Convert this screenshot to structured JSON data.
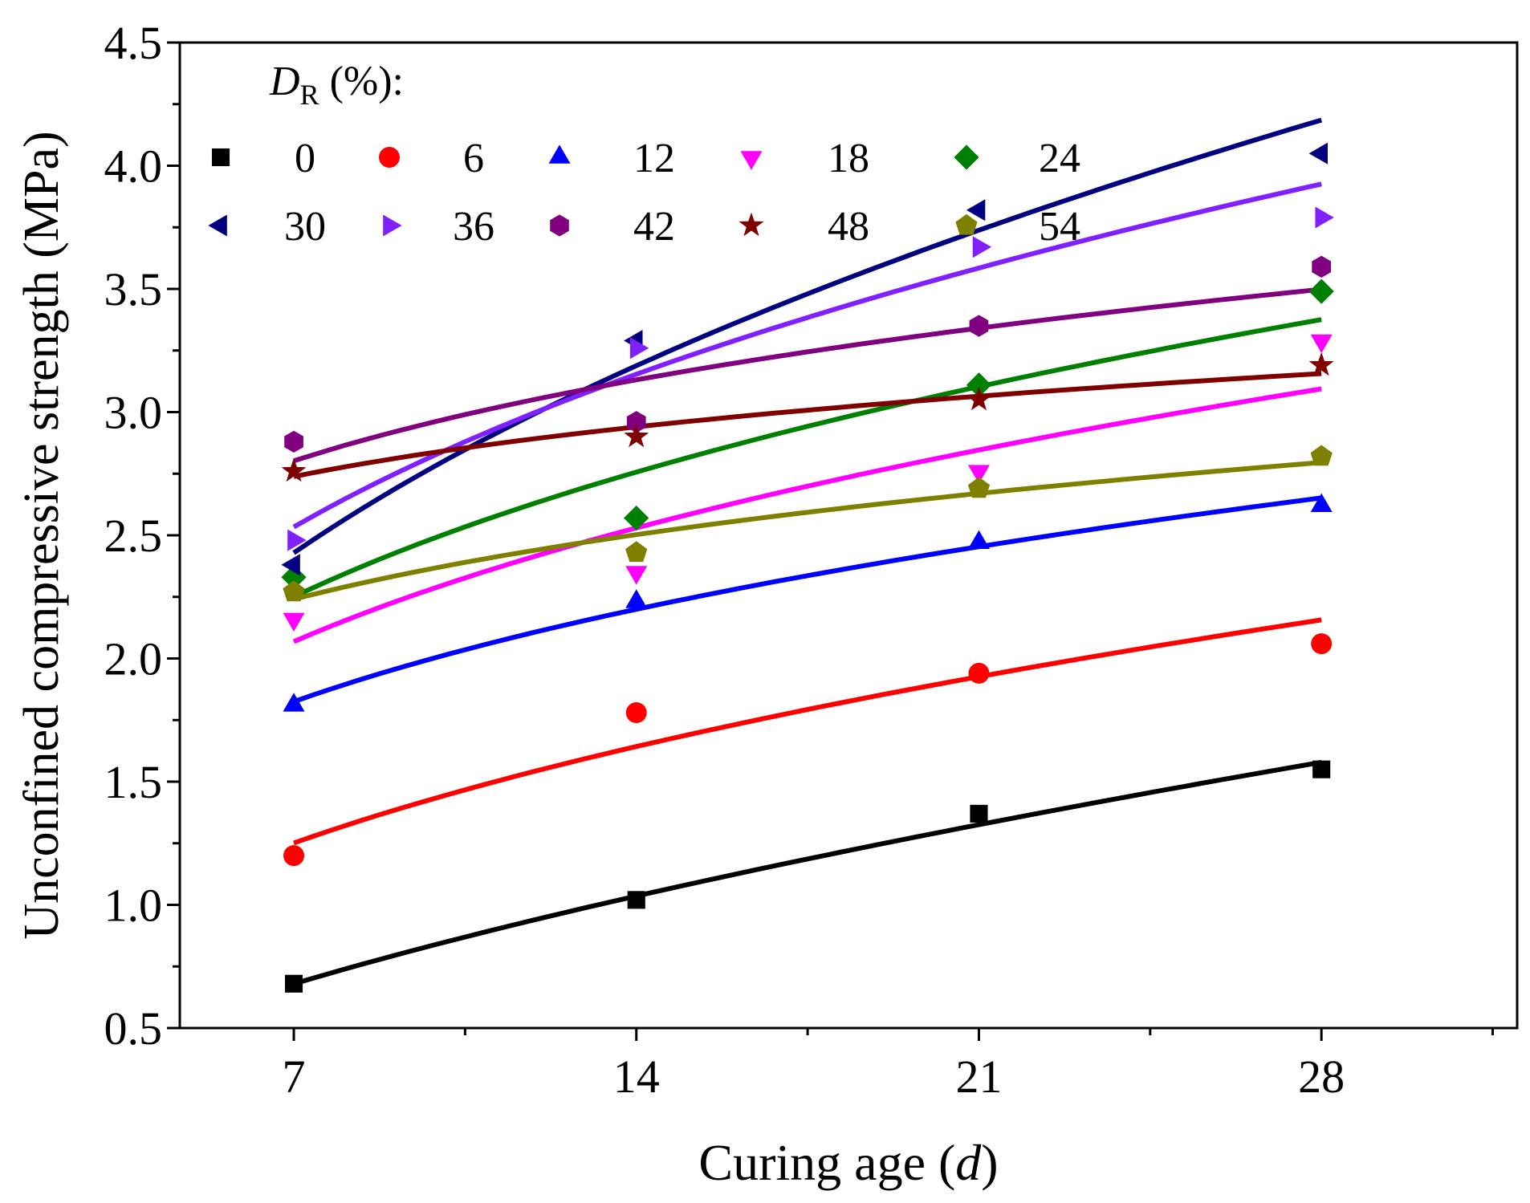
{
  "chart_data": {
    "type": "scatter",
    "title": "",
    "xlabel": "Curing age (d)",
    "xlabel_main": "Curing age (",
    "xlabel_italic": "d",
    "xlabel_end": ")",
    "ylabel": "Unconfined compressive strength (MPa)",
    "xlim": [
      4.67,
      32.0
    ],
    "ylim": [
      0.5,
      4.5
    ],
    "xticks": [
      7,
      14,
      21,
      28
    ],
    "xtick_labels": [
      "7",
      "14",
      "21",
      "28"
    ],
    "yticks": [
      0.5,
      1.0,
      1.5,
      2.0,
      2.5,
      3.0,
      3.5,
      4.0,
      4.5
    ],
    "ytick_labels": [
      "0.5",
      "1.0",
      "1.5",
      "2.0",
      "2.5",
      "3.0",
      "3.5",
      "4.0",
      "4.5"
    ],
    "grid": false,
    "legend_title_main": "D",
    "legend_title_sub": "R",
    "legend_title_rest": " (%):",
    "legend_placement": "top-left",
    "fit": "power curve fit per series",
    "x": [
      7,
      14,
      21,
      28
    ],
    "series": [
      {
        "name": "0",
        "marker": "square",
        "color": "#000000",
        "values": [
          0.68,
          1.02,
          1.37,
          1.55
        ]
      },
      {
        "name": "6",
        "marker": "circle",
        "color": "#ff0000",
        "values": [
          1.2,
          1.78,
          1.94,
          2.06
        ]
      },
      {
        "name": "12",
        "marker": "triangle-up",
        "color": "#0000ff",
        "values": [
          1.81,
          2.23,
          2.47,
          2.62
        ]
      },
      {
        "name": "18",
        "marker": "triangle-down",
        "color": "#ff00ff",
        "values": [
          2.16,
          2.35,
          2.76,
          3.29
        ]
      },
      {
        "name": "24",
        "marker": "diamond",
        "color": "#008000",
        "values": [
          2.33,
          2.57,
          3.11,
          3.49
        ]
      },
      {
        "name": "30",
        "marker": "triangle-left",
        "color": "#000080",
        "values": [
          2.38,
          3.29,
          3.82,
          4.05
        ]
      },
      {
        "name": "36",
        "marker": "triangle-right",
        "color": "#8020ff",
        "values": [
          2.48,
          3.26,
          3.67,
          3.79
        ]
      },
      {
        "name": "42",
        "marker": "hexagon",
        "color": "#800080",
        "values": [
          2.88,
          2.96,
          3.35,
          3.59
        ]
      },
      {
        "name": "48",
        "marker": "star",
        "color": "#800000",
        "values": [
          2.76,
          2.9,
          3.05,
          3.19
        ]
      },
      {
        "name": "54",
        "marker": "pentagon",
        "color": "#808000",
        "values": [
          2.27,
          2.43,
          2.69,
          2.82
        ]
      }
    ]
  }
}
